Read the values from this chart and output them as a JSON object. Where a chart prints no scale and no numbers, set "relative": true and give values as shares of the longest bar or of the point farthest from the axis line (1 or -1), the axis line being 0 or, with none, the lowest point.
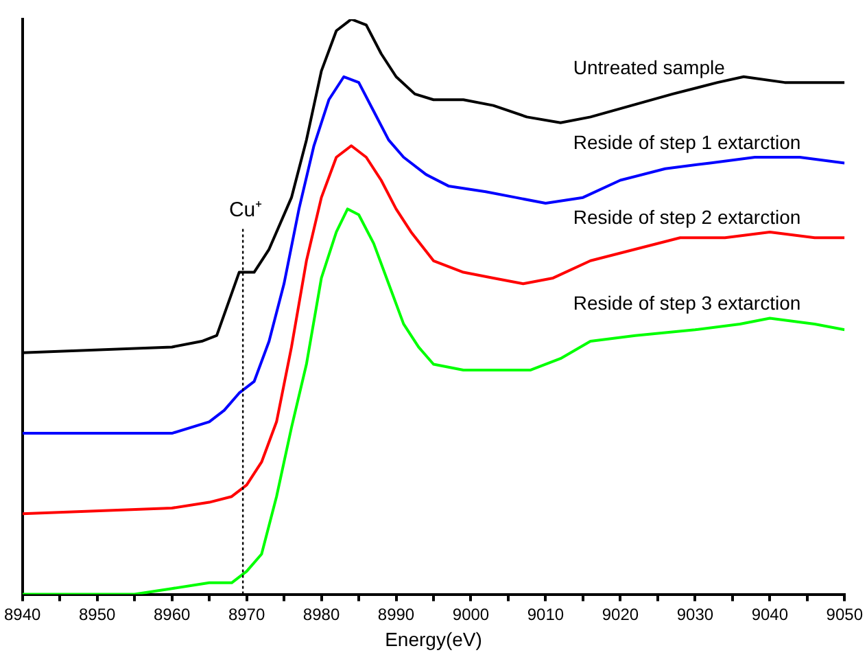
{
  "chart_data": {
    "type": "line",
    "relative": true,
    "xlabel": "Energy(eV)",
    "xlim": [
      8940,
      9050
    ],
    "xticks": [
      8940,
      {
        "value": 8945,
        "label": null
      },
      8950,
      {
        "value": 8955,
        "label": null
      },
      8960,
      {
        "value": 8965,
        "label": null
      },
      8970,
      {
        "value": 8975,
        "label": null
      },
      8980,
      {
        "value": 8985,
        "label": null
      },
      8990,
      {
        "value": 8995,
        "label": null
      },
      9000,
      {
        "value": 9005,
        "label": null
      },
      9010,
      {
        "value": 9015,
        "label": null
      },
      9020,
      {
        "value": 9025,
        "label": null
      },
      9030,
      {
        "value": 9035,
        "label": null
      },
      9040,
      {
        "value": 9045,
        "label": null
      },
      9050
    ],
    "grid": false,
    "legend": false,
    "marker": "none",
    "line_style": "solid",
    "ref_lines": [
      {
        "axis": "x",
        "value": 8969.5,
        "label": "Cu⁺",
        "color": "#000000",
        "line_style": "dotted"
      }
    ],
    "series": [
      {
        "name": "Untreated sample",
        "color": "#000000",
        "x": [
          8940,
          8960,
          8964,
          8966,
          8969,
          8971,
          8973,
          8976,
          8978,
          8980,
          8982,
          8984,
          8986,
          8988,
          8990,
          8992.5,
          8995,
          8999,
          9003,
          9007.5,
          9012,
          9016,
          9021.5,
          9027,
          9033,
          9036.5,
          9042,
          9046,
          9050
        ],
        "values": [
          0.42,
          0.43,
          0.44,
          0.45,
          0.56,
          0.56,
          0.6,
          0.69,
          0.79,
          0.91,
          0.98,
          1.0,
          0.99,
          0.94,
          0.9,
          0.87,
          0.86,
          0.86,
          0.85,
          0.83,
          0.82,
          0.83,
          0.85,
          0.87,
          0.89,
          0.9,
          0.89,
          0.89,
          0.89
        ]
      },
      {
        "name": "Reside of step 1 extarction",
        "color": "#0000ff",
        "x": [
          8940,
          8960,
          8965,
          8967,
          8969,
          8971,
          8973,
          8975,
          8977,
          8979,
          8981,
          8983,
          8985,
          8987,
          8989,
          8991,
          8994,
          8997,
          9002,
          9006,
          9010,
          9015,
          9020,
          9026,
          9032,
          9038,
          9044,
          9050
        ],
        "values": [
          0.28,
          0.28,
          0.3,
          0.32,
          0.35,
          0.37,
          0.44,
          0.54,
          0.67,
          0.78,
          0.86,
          0.9,
          0.89,
          0.84,
          0.79,
          0.76,
          0.73,
          0.71,
          0.7,
          0.69,
          0.68,
          0.69,
          0.72,
          0.74,
          0.75,
          0.76,
          0.76,
          0.75
        ]
      },
      {
        "name": "Reside of step 2 extarction",
        "color": "#ff0000",
        "x": [
          8940,
          8960,
          8965,
          8968,
          8970,
          8972,
          8974,
          8976,
          8978,
          8980,
          8982,
          8984,
          8986,
          8988,
          8990,
          8992,
          8995,
          8999,
          9003,
          9007,
          9011,
          9016,
          9022,
          9028,
          9034,
          9040,
          9046,
          9050
        ],
        "values": [
          0.14,
          0.15,
          0.16,
          0.17,
          0.19,
          0.23,
          0.3,
          0.43,
          0.58,
          0.69,
          0.76,
          0.78,
          0.76,
          0.72,
          0.67,
          0.63,
          0.58,
          0.56,
          0.55,
          0.54,
          0.55,
          0.58,
          0.6,
          0.62,
          0.62,
          0.63,
          0.62,
          0.62
        ]
      },
      {
        "name": "Reside of step 3 extarction",
        "color": "#00ff00",
        "x": [
          8940,
          8955,
          8960,
          8965,
          8968,
          8970,
          8972,
          8974,
          8976,
          8978,
          8980,
          8982,
          8983.5,
          8985,
          8987,
          8989,
          8991,
          8993,
          8995,
          8999,
          9004,
          9008,
          9012,
          9016,
          9022,
          9030,
          9036,
          9040,
          9046,
          9050
        ],
        "values": [
          0.0,
          0.0,
          0.01,
          0.02,
          0.02,
          0.04,
          0.07,
          0.17,
          0.29,
          0.4,
          0.55,
          0.63,
          0.67,
          0.66,
          0.61,
          0.54,
          0.47,
          0.43,
          0.4,
          0.39,
          0.39,
          0.39,
          0.41,
          0.44,
          0.45,
          0.46,
          0.47,
          0.48,
          0.47,
          0.46
        ]
      }
    ]
  }
}
